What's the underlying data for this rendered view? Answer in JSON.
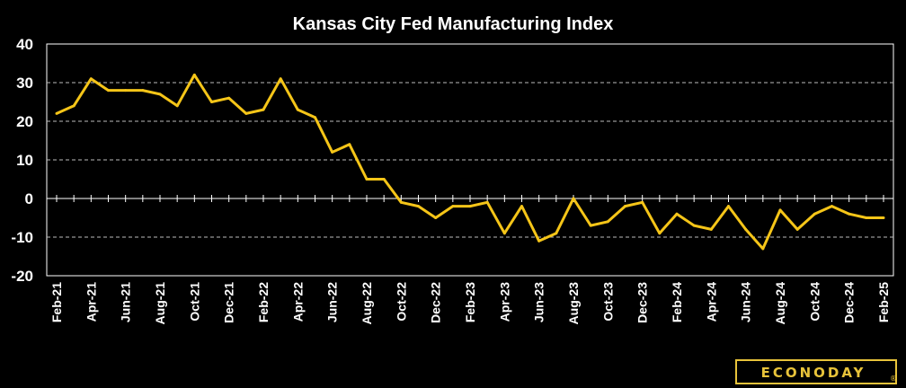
{
  "chart_data": {
    "type": "line",
    "title": "Kansas City Fed Manufacturing Index",
    "xlabel": "",
    "ylabel": "",
    "ylim": [
      -20,
      40
    ],
    "yticks": [
      "40",
      "30",
      "20",
      "10",
      "0",
      "-10",
      "-20"
    ],
    "grid": true,
    "line_color": "#f5c518",
    "x": [
      "Feb-21",
      "Mar-21",
      "Apr-21",
      "May-21",
      "Jun-21",
      "Jul-21",
      "Aug-21",
      "Sep-21",
      "Oct-21",
      "Nov-21",
      "Dec-21",
      "Jan-22",
      "Feb-22",
      "Mar-22",
      "Apr-22",
      "May-22",
      "Jun-22",
      "Jul-22",
      "Aug-22",
      "Sep-22",
      "Oct-22",
      "Nov-22",
      "Dec-22",
      "Jan-23",
      "Feb-23",
      "Mar-23",
      "Apr-23",
      "May-23",
      "Jun-23",
      "Jul-23",
      "Aug-23",
      "Sep-23",
      "Oct-23",
      "Nov-23",
      "Dec-23",
      "Jan-24",
      "Feb-24",
      "Mar-24",
      "Apr-24",
      "May-24",
      "Jun-24",
      "Jul-24",
      "Aug-24",
      "Sep-24",
      "Oct-24",
      "Nov-24",
      "Dec-24",
      "Jan-25",
      "Feb-25"
    ],
    "xtick_labels": [
      "Feb-21",
      "Apr-21",
      "Jun-21",
      "Aug-21",
      "Oct-21",
      "Dec-21",
      "Feb-22",
      "Apr-22",
      "Jun-22",
      "Aug-22",
      "Oct-22",
      "Dec-22",
      "Feb-23",
      "Apr-23",
      "Jun-23",
      "Aug-23",
      "Oct-23",
      "Dec-23",
      "Feb-24",
      "Apr-24",
      "Jun-24",
      "Aug-24",
      "Oct-24",
      "Dec-24",
      "Feb-25"
    ],
    "values": [
      22,
      24,
      31,
      28,
      28,
      28,
      27,
      24,
      32,
      25,
      26,
      22,
      23,
      31,
      23,
      21,
      12,
      14,
      5,
      5,
      -1,
      -2,
      -5,
      -2,
      -2,
      -1,
      -9,
      -2,
      -11,
      -9,
      0,
      -7,
      -6,
      -2,
      -1,
      -9,
      -4,
      -7,
      -8,
      -2,
      -8,
      -13,
      -3,
      -8,
      -4,
      -2,
      -4,
      -5,
      -5
    ]
  },
  "branding": {
    "logo_text": "ECONODAY",
    "logo_mark": "®",
    "logo_color": "#e8c33a"
  }
}
